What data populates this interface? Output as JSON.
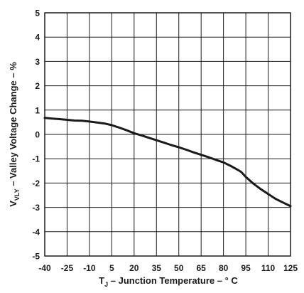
{
  "chart_data": {
    "type": "line",
    "xlabel_main": "T",
    "xlabel_sub": "J",
    "xlabel_rest": " – Junction Temperature – ° C",
    "ylabel_main": "V",
    "ylabel_sub": "VLY",
    "ylabel_rest": " – Valley Voltage Change – %",
    "xlim": [
      -40,
      125
    ],
    "ylim": [
      -5,
      5
    ],
    "xticks": [
      "-40",
      "-25",
      "-10",
      "5",
      "20",
      "35",
      "50",
      "65",
      "80",
      "95",
      "110",
      "125"
    ],
    "yticks": [
      "5",
      "4",
      "3",
      "2",
      "1",
      "0",
      "-1",
      "-2",
      "-3",
      "-4",
      "-5"
    ],
    "grid": true,
    "series": [
      {
        "x": [
          -40,
          -35,
          -30,
          -25,
          -20,
          -15,
          -10,
          -5,
          0,
          5,
          10,
          15,
          20,
          25,
          30,
          35,
          40,
          45,
          50,
          55,
          60,
          65,
          70,
          75,
          80,
          85,
          90,
          92,
          95,
          100,
          105,
          110,
          115,
          120,
          125
        ],
        "y": [
          0.68,
          0.65,
          0.63,
          0.6,
          0.57,
          0.56,
          0.53,
          0.49,
          0.45,
          0.38,
          0.28,
          0.17,
          0.05,
          -0.04,
          -0.14,
          -0.24,
          -0.34,
          -0.44,
          -0.53,
          -0.63,
          -0.74,
          -0.84,
          -0.94,
          -1.05,
          -1.15,
          -1.3,
          -1.47,
          -1.55,
          -1.75,
          -2.02,
          -2.25,
          -2.45,
          -2.65,
          -2.8,
          -2.95
        ]
      }
    ]
  }
}
